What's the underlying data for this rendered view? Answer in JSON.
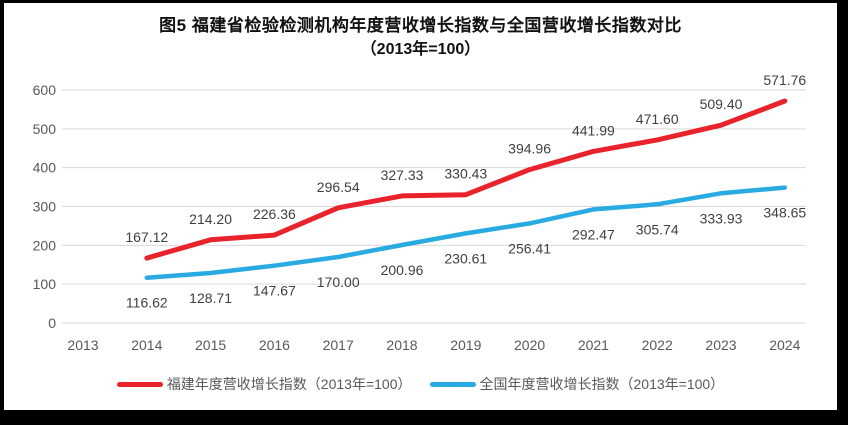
{
  "frame": {
    "background": "#000000",
    "panel_background": "#ffffff"
  },
  "chart_data": {
    "type": "line",
    "title": "图5  福建省检验检测机构年度营收增长指数与全国营收增长指数对比",
    "subtitle": "（2013年=100）",
    "categories": [
      "2013",
      "2014",
      "2015",
      "2016",
      "2017",
      "2018",
      "2019",
      "2020",
      "2021",
      "2022",
      "2023",
      "2024"
    ],
    "series": [
      {
        "name": "福建年度营收增长指数（2013年=100）",
        "key": "fujian",
        "color": "#e8232b",
        "label_position": "above",
        "values": [
          null,
          167.12,
          214.2,
          226.36,
          296.54,
          327.33,
          330.43,
          394.96,
          441.99,
          471.6,
          509.4,
          571.76
        ]
      },
      {
        "name": "全国年度营收增长指数（2013年=100）",
        "key": "national",
        "color": "#29abe2",
        "label_position": "below",
        "values": [
          null,
          116.62,
          128.71,
          147.67,
          170.0,
          200.96,
          230.61,
          256.41,
          292.47,
          305.74,
          333.93,
          348.65
        ]
      }
    ],
    "ylim": [
      0,
      600
    ],
    "ytick_step": 100,
    "yticks": [
      0,
      100,
      200,
      300,
      400,
      500,
      600
    ],
    "label_decimals": 2,
    "grid": true,
    "legend_position": "bottom",
    "colors": {
      "gridline": "#d9d9d9",
      "axis_label": "#595959",
      "data_label": "#404040"
    }
  }
}
